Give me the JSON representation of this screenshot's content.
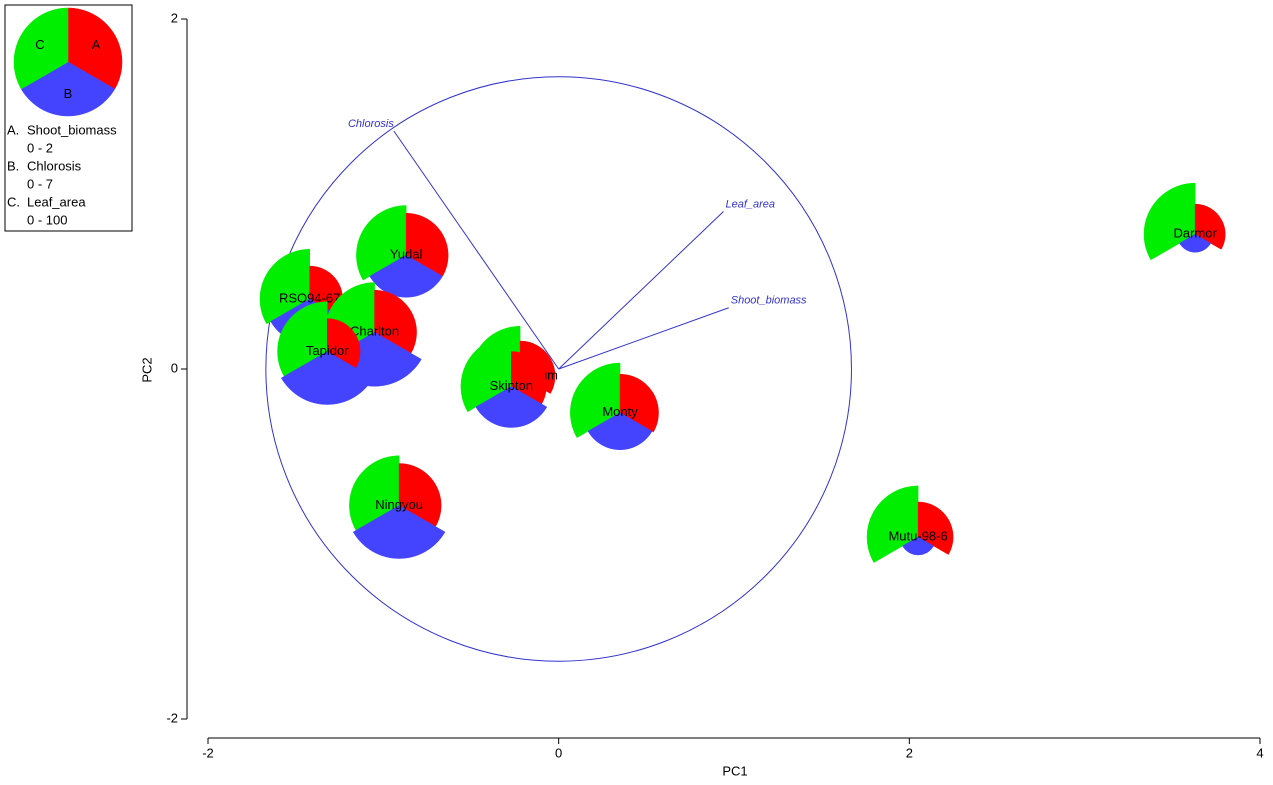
{
  "chart_data": {
    "type": "star-biplot",
    "x_label": "PC1",
    "y_label": "PC2",
    "xlim": [
      -2,
      4
    ],
    "xticks": [
      -2,
      0,
      2,
      4
    ],
    "ylim": [
      -2,
      2
    ],
    "yticks": [
      -2,
      0,
      2
    ],
    "circle_radius": 1.67,
    "circle_color": "#3333cc",
    "legend": {
      "pie_labels": [
        "A",
        "B",
        "C"
      ],
      "items": [
        {
          "key": "A.",
          "name": "Shoot_biomass",
          "range": "0 - 2",
          "color": "#ff0000"
        },
        {
          "key": "B.",
          "name": "Chlorosis",
          "range": "0 - 7",
          "color": "#4444ff"
        },
        {
          "key": "C.",
          "name": "Leaf_area",
          "range": "0 - 100",
          "color": "#00ee00"
        }
      ]
    },
    "loadings": [
      {
        "name": "Chlorosis",
        "x": -0.94,
        "y": 1.36
      },
      {
        "name": "Leaf_area",
        "x": 0.94,
        "y": 0.9
      },
      {
        "name": "Shoot_biomass",
        "x": 0.97,
        "y": 0.35
      }
    ],
    "observations": [
      {
        "name": "Yudal",
        "x": -0.87,
        "y": 0.65,
        "values": [
          1.2,
          4.2,
          71
        ]
      },
      {
        "name": "RSO94-67",
        "x": -1.42,
        "y": 0.4,
        "values": [
          0.94,
          4.5,
          71
        ]
      },
      {
        "name": "Charlton",
        "x": -1.05,
        "y": 0.21,
        "values": [
          1.2,
          5.4,
          71
        ]
      },
      {
        "name": "Tapidor",
        "x": -1.32,
        "y": 0.1,
        "values": [
          0.94,
          5.3,
          71
        ]
      },
      {
        "name": "Ag-Spectrum",
        "x": -0.22,
        "y": -0.04,
        "values": [
          1.0,
          3.0,
          71
        ]
      },
      {
        "name": "Skipton",
        "x": -0.27,
        "y": -0.1,
        "values": [
          1.0,
          4.1,
          72
        ]
      },
      {
        "name": "Monty",
        "x": 0.35,
        "y": -0.25,
        "values": [
          1.1,
          3.7,
          71
        ]
      },
      {
        "name": "Ningyou",
        "x": -0.91,
        "y": -0.78,
        "values": [
          1.2,
          5.3,
          71
        ]
      },
      {
        "name": "Mutu-98-6",
        "x": 2.05,
        "y": -0.96,
        "values": [
          1.0,
          1.8,
          73
        ]
      },
      {
        "name": "Darmor",
        "x": 3.63,
        "y": 0.77,
        "values": [
          0.86,
          1.8,
          73
        ]
      }
    ]
  }
}
